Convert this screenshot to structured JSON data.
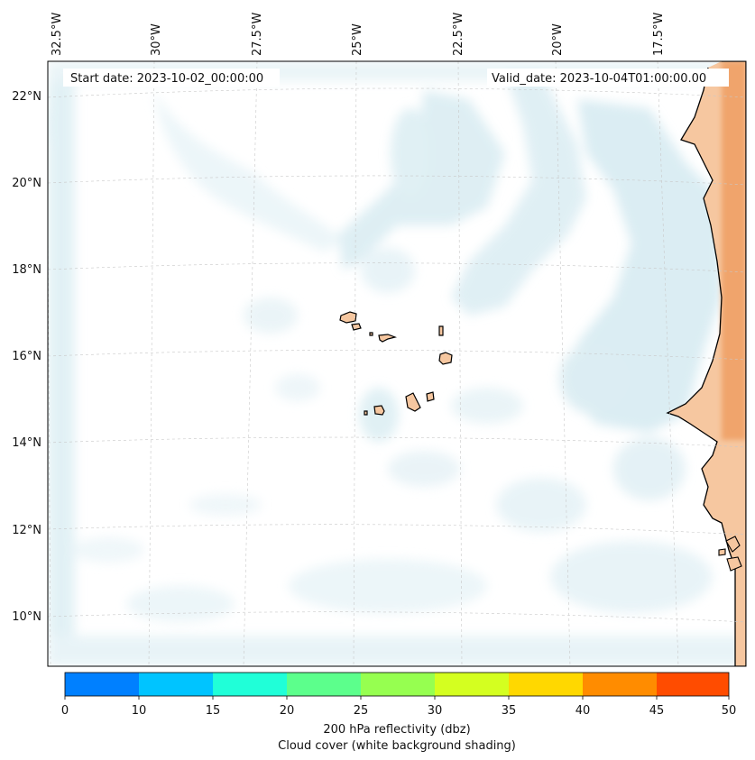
{
  "header": {
    "start_date": "Start date: 2023-10-02_00:00:00",
    "valid_date": "Valid_date: 2023-10-04T01:00:00.00"
  },
  "axes": {
    "lon_labels": [
      "32.5°W",
      "30°W",
      "27.5°W",
      "25°W",
      "22.5°W",
      "20°W",
      "17.5°W"
    ],
    "lat_labels": [
      "22°N",
      "20°N",
      "18°N",
      "16°N",
      "14°N",
      "12°N",
      "10°N"
    ]
  },
  "colorbar": {
    "ticks": [
      "0",
      "10",
      "15",
      "20",
      "25",
      "30",
      "35",
      "40",
      "45",
      "50"
    ],
    "colors": [
      "#0080ff",
      "#00c4ff",
      "#20ffd8",
      "#5cff8c",
      "#96ff50",
      "#d4ff20",
      "#ffd800",
      "#ff8c00",
      "#ff4c00"
    ],
    "label_line1": "200 hPa reflectivity (dbz)",
    "label_line2": "Cloud cover (white background shading)"
  },
  "map_colors": {
    "cloud": "#d8ecf2",
    "land_warm": "#f6c7a0",
    "land_hot": "#f0a46c",
    "coast": "#000000",
    "grid": "#c8c8c8"
  }
}
